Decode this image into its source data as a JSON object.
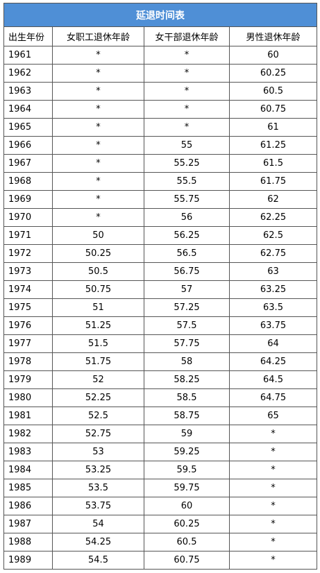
{
  "table": {
    "title": "延退时间表",
    "header": [
      "出生年份",
      "女职工退休年龄",
      "女干部退休年龄",
      "男性退休年龄"
    ],
    "rows": [
      [
        "1961",
        "*",
        "*",
        "60"
      ],
      [
        "1962",
        "*",
        "*",
        "60.25"
      ],
      [
        "1963",
        "*",
        "*",
        "60.5"
      ],
      [
        "1964",
        "*",
        "*",
        "60.75"
      ],
      [
        "1965",
        "*",
        "*",
        "61"
      ],
      [
        "1966",
        "*",
        "55",
        "61.25"
      ],
      [
        "1967",
        "*",
        "55.25",
        "61.5"
      ],
      [
        "1968",
        "*",
        "55.5",
        "61.75"
      ],
      [
        "1969",
        "*",
        "55.75",
        "62"
      ],
      [
        "1970",
        "*",
        "56",
        "62.25"
      ],
      [
        "1971",
        "50",
        "56.25",
        "62.5"
      ],
      [
        "1972",
        "50.25",
        "56.5",
        "62.75"
      ],
      [
        "1973",
        "50.5",
        "56.75",
        "63"
      ],
      [
        "1974",
        "50.75",
        "57",
        "63.25"
      ],
      [
        "1975",
        "51",
        "57.25",
        "63.5"
      ],
      [
        "1976",
        "51.25",
        "57.5",
        "63.75"
      ],
      [
        "1977",
        "51.5",
        "57.75",
        "64"
      ],
      [
        "1978",
        "51.75",
        "58",
        "64.25"
      ],
      [
        "1979",
        "52",
        "58.25",
        "64.5"
      ],
      [
        "1980",
        "52.25",
        "58.5",
        "64.75"
      ],
      [
        "1981",
        "52.5",
        "58.75",
        "65"
      ],
      [
        "1982",
        "52.75",
        "59",
        "*"
      ],
      [
        "1983",
        "53",
        "59.25",
        "*"
      ],
      [
        "1984",
        "53.25",
        "59.5",
        "*"
      ],
      [
        "1985",
        "53.5",
        "59.75",
        "*"
      ],
      [
        "1986",
        "53.75",
        "60",
        "*"
      ],
      [
        "1987",
        "54",
        "60.25",
        "*"
      ],
      [
        "1988",
        "54.25",
        "60.5",
        "*"
      ],
      [
        "1989",
        "54.5",
        "60.75",
        "*"
      ]
    ]
  }
}
